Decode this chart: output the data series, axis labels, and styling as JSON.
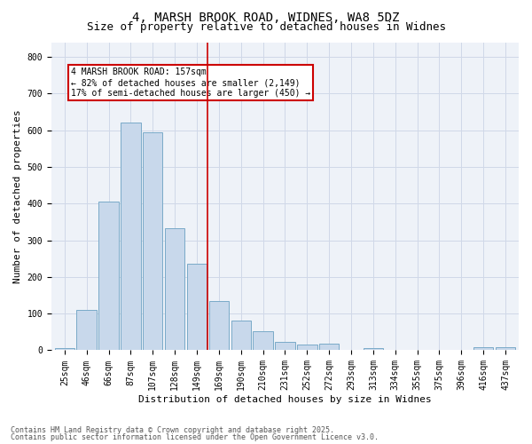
{
  "title": "4, MARSH BROOK ROAD, WIDNES, WA8 5DZ",
  "subtitle": "Size of property relative to detached houses in Widnes",
  "xlabel": "Distribution of detached houses by size in Widnes",
  "ylabel": "Number of detached properties",
  "bar_labels": [
    "25sqm",
    "46sqm",
    "66sqm",
    "87sqm",
    "107sqm",
    "128sqm",
    "149sqm",
    "169sqm",
    "190sqm",
    "210sqm",
    "231sqm",
    "252sqm",
    "272sqm",
    "293sqm",
    "313sqm",
    "334sqm",
    "355sqm",
    "375sqm",
    "396sqm",
    "416sqm",
    "437sqm"
  ],
  "bar_values": [
    5,
    110,
    405,
    620,
    595,
    333,
    235,
    135,
    80,
    52,
    22,
    15,
    18,
    0,
    5,
    0,
    0,
    0,
    0,
    8,
    8
  ],
  "bar_color": "#c8d8eb",
  "bar_edge_color": "#7aaac8",
  "grid_color": "#d0d8e8",
  "background_color": "#eef2f8",
  "vline_x_index": 6.5,
  "vline_color": "#cc0000",
  "annotation_text": "4 MARSH BROOK ROAD: 157sqm\n← 82% of detached houses are smaller (2,149)\n17% of semi-detached houses are larger (450) →",
  "annotation_box_color": "#cc0000",
  "annotation_text_color": "#000000",
  "ylim": [
    0,
    840
  ],
  "yticks": [
    0,
    100,
    200,
    300,
    400,
    500,
    600,
    700,
    800
  ],
  "footer_line1": "Contains HM Land Registry data © Crown copyright and database right 2025.",
  "footer_line2": "Contains public sector information licensed under the Open Government Licence v3.0.",
  "title_fontsize": 10,
  "subtitle_fontsize": 9,
  "axis_label_fontsize": 8,
  "tick_fontsize": 7,
  "annotation_fontsize": 7,
  "footer_fontsize": 6,
  "fig_width": 6.0,
  "fig_height": 5.0,
  "fig_dpi": 100
}
